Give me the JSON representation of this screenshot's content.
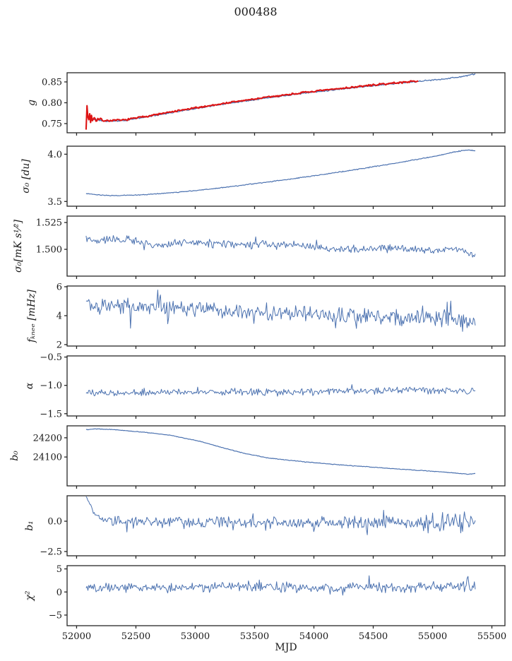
{
  "title": "000488",
  "xlabel": "MJD",
  "colors": {
    "background": "#ffffff",
    "spine": "#262626",
    "text": "#1a1a1a",
    "line_blue": "#4C72B0",
    "line_red": "#DE1414"
  },
  "chart_data": {
    "type": "line",
    "title": "000488",
    "xlabel": "MJD",
    "xlim": [
      51920,
      55610
    ],
    "xticks": [
      52000,
      52500,
      53000,
      53500,
      54000,
      54500,
      55000,
      55500
    ],
    "xticklabels": [
      "52000",
      "52500",
      "53000",
      "53500",
      "54000",
      "54500",
      "55000",
      "55500"
    ],
    "grid": false,
    "legend": "none",
    "subplots": [
      {
        "ylabel": "g",
        "ylim": [
          0.728,
          0.872
        ],
        "yticks": [
          0.85,
          0.8,
          0.75
        ],
        "yticklabels": [
          "0.85",
          "0.80",
          "0.75"
        ],
        "series": [
          {
            "name": "g-line",
            "color": "#4C72B0",
            "width": 1.3,
            "seed": 11,
            "n": 430,
            "x_start": 52080,
            "x_end": 55360,
            "trend": [
              [
                52080,
                0.769
              ],
              [
                52150,
                0.76
              ],
              [
                52250,
                0.7555
              ],
              [
                52400,
                0.757
              ],
              [
                52700,
                0.7715
              ],
              [
                53000,
                0.786
              ],
              [
                53300,
                0.7995
              ],
              [
                53600,
                0.8115
              ],
              [
                53900,
                0.8225
              ],
              [
                54200,
                0.832
              ],
              [
                54500,
                0.841
              ],
              [
                54800,
                0.849
              ],
              [
                55000,
                0.8545
              ],
              [
                55150,
                0.859
              ],
              [
                55250,
                0.863
              ],
              [
                55360,
                0.869
              ]
            ],
            "noise": [
              [
                52080,
                0.0013
              ],
              [
                55360,
                0.0013
              ]
            ]
          },
          {
            "name": "g-fit-line",
            "color": "#DE1414",
            "width": 2.1,
            "seed": 7,
            "n": 370,
            "x_start": 52080,
            "x_end": 54880,
            "trend": [
              [
                52080,
                0.7705
              ],
              [
                52150,
                0.7615
              ],
              [
                52250,
                0.757
              ],
              [
                52400,
                0.7585
              ],
              [
                52700,
                0.773
              ],
              [
                53000,
                0.7875
              ],
              [
                53300,
                0.801
              ],
              [
                53600,
                0.813
              ],
              [
                53900,
                0.824
              ],
              [
                54200,
                0.8335
              ],
              [
                54500,
                0.8425
              ],
              [
                54800,
                0.8505
              ],
              [
                54880,
                0.8525
              ]
            ],
            "noise": [
              [
                52080,
                0.027
              ],
              [
                52150,
                0.006
              ],
              [
                52260,
                0.0018
              ],
              [
                54880,
                0.0018
              ]
            ]
          }
        ]
      },
      {
        "ylabel": "σ₀ [du]",
        "ylim": [
          3.45,
          4.085
        ],
        "yticks": [
          4.0,
          3.5
        ],
        "yticklabels": [
          "4.0",
          "3.5"
        ],
        "series": [
          {
            "name": "sigma0-du-line",
            "color": "#4C72B0",
            "width": 1.2,
            "seed": 23,
            "n": 480,
            "x_start": 52080,
            "x_end": 55360,
            "trend": [
              [
                52080,
                3.585
              ],
              [
                52200,
                3.566
              ],
              [
                52350,
                3.562
              ],
              [
                52600,
                3.574
              ],
              [
                52900,
                3.603
              ],
              [
                53200,
                3.642
              ],
              [
                53500,
                3.688
              ],
              [
                53800,
                3.737
              ],
              [
                54100,
                3.79
              ],
              [
                54400,
                3.846
              ],
              [
                54700,
                3.908
              ],
              [
                54950,
                3.962
              ],
              [
                55100,
                4.0
              ],
              [
                55200,
                4.028
              ],
              [
                55290,
                4.045
              ],
              [
                55360,
                4.038
              ]
            ],
            "noise": [
              [
                52080,
                0.004
              ],
              [
                55360,
                0.004
              ]
            ]
          }
        ]
      },
      {
        "ylabel": "σ₀[mK s¹⁄²]",
        "ylim": [
          1.475,
          1.531
        ],
        "yticks": [
          1.525,
          1.5
        ],
        "yticklabels": [
          "1.525",
          "1.500"
        ],
        "series": [
          {
            "name": "sigma0-mks-line",
            "color": "#4C72B0",
            "width": 1.0,
            "seed": 37,
            "n": 430,
            "x_start": 52080,
            "x_end": 55360,
            "trend": [
              [
                52080,
                1.508
              ],
              [
                52400,
                1.51
              ],
              [
                52600,
                1.504
              ],
              [
                53000,
                1.506
              ],
              [
                53400,
                1.504
              ],
              [
                53800,
                1.505
              ],
              [
                54200,
                1.5
              ],
              [
                54600,
                1.501
              ],
              [
                55000,
                1.499
              ],
              [
                55200,
                1.5
              ],
              [
                55360,
                1.494
              ]
            ],
            "noise": [
              [
                52080,
                0.0032
              ],
              [
                55360,
                0.0032
              ]
            ],
            "spike_prob": 0.03,
            "spike_scale": 1.5
          }
        ]
      },
      {
        "ylabel": "fₖₙₑₑ [mHz]",
        "ylim": [
          1.9,
          6.05
        ],
        "yticks": [
          6,
          4,
          2
        ],
        "yticklabels": [
          "6",
          "4",
          "2"
        ],
        "series": [
          {
            "name": "fknee-line",
            "color": "#4C72B0",
            "width": 1.0,
            "seed": 41,
            "n": 430,
            "x_start": 52080,
            "x_end": 55360,
            "trend": [
              [
                52080,
                4.75
              ],
              [
                52400,
                4.62
              ],
              [
                52800,
                4.5
              ],
              [
                53200,
                4.38
              ],
              [
                53600,
                4.22
              ],
              [
                54000,
                4.05
              ],
              [
                54400,
                3.95
              ],
              [
                54800,
                3.87
              ],
              [
                55100,
                3.82
              ],
              [
                55360,
                3.78
              ]
            ],
            "noise": [
              [
                52080,
                0.5
              ],
              [
                55360,
                0.5
              ]
            ],
            "spike_prob": 0.04,
            "spike_scale": 2.2
          }
        ]
      },
      {
        "ylabel": "α",
        "ylim": [
          -1.54,
          -0.48
        ],
        "yticks": [
          -0.5,
          -1.0,
          -1.5
        ],
        "yticklabels": [
          "−0.5",
          "−1.0",
          "−1.5"
        ],
        "series": [
          {
            "name": "alpha-line",
            "color": "#4C72B0",
            "width": 1.0,
            "seed": 53,
            "n": 430,
            "x_start": 52080,
            "x_end": 55360,
            "trend": [
              [
                52080,
                -1.13
              ],
              [
                52600,
                -1.125
              ],
              [
                53200,
                -1.115
              ],
              [
                53800,
                -1.115
              ],
              [
                54400,
                -1.1
              ],
              [
                54800,
                -1.085
              ],
              [
                55100,
                -1.095
              ],
              [
                55360,
                -1.1
              ]
            ],
            "noise": [
              [
                52080,
                0.05
              ],
              [
                55360,
                0.05
              ]
            ],
            "spike_prob": 0.03,
            "spike_scale": 1.8
          }
        ]
      },
      {
        "ylabel": "b₀",
        "ylim": [
          23950,
          24262
        ],
        "yticks": [
          24200,
          24100
        ],
        "yticklabels": [
          "24200",
          "24100"
        ],
        "series": [
          {
            "name": "b0-line",
            "color": "#4C72B0",
            "width": 1.2,
            "seed": 61,
            "n": 430,
            "x_start": 52080,
            "x_end": 55360,
            "trend": [
              [
                52080,
                24242
              ],
              [
                52170,
                24246
              ],
              [
                52320,
                24242
              ],
              [
                52550,
                24230
              ],
              [
                52800,
                24212
              ],
              [
                53050,
                24180
              ],
              [
                53250,
                24145
              ],
              [
                53420,
                24118
              ],
              [
                53615,
                24095
              ],
              [
                53900,
                24076
              ],
              [
                54200,
                24060
              ],
              [
                54500,
                24047
              ],
              [
                54800,
                24034
              ],
              [
                55050,
                24024
              ],
              [
                55200,
                24016
              ],
              [
                55300,
                24010
              ],
              [
                55360,
                24015
              ]
            ],
            "noise": [
              [
                52080,
                1.4
              ],
              [
                55360,
                1.4
              ]
            ]
          }
        ]
      },
      {
        "ylabel": "b₁",
        "ylim": [
          -2.85,
          2.1
        ],
        "yticks": [
          0.0,
          -2.5
        ],
        "yticklabels": [
          "0.0",
          "−2.5"
        ],
        "series": [
          {
            "name": "b1-line",
            "color": "#4C72B0",
            "width": 1.0,
            "seed": 71,
            "n": 430,
            "x_start": 52080,
            "x_end": 55360,
            "trend": [
              [
                52080,
                2.05
              ],
              [
                52110,
                1.4
              ],
              [
                52150,
                0.75
              ],
              [
                52200,
                0.3
              ],
              [
                52280,
                0.02
              ],
              [
                52400,
                -0.08
              ],
              [
                53000,
                -0.1
              ],
              [
                54500,
                -0.08
              ],
              [
                55360,
                -0.05
              ]
            ],
            "noise": [
              [
                52080,
                0.12
              ],
              [
                52300,
                0.4
              ],
              [
                54700,
                0.42
              ],
              [
                55000,
                0.65
              ],
              [
                55360,
                0.7
              ]
            ],
            "spike_prob": 0.035,
            "spike_scale": 2.0
          }
        ]
      },
      {
        "ylabel": "χ²",
        "ylim": [
          -7.3,
          5.7
        ],
        "yticks": [
          5,
          0,
          -5
        ],
        "yticklabels": [
          "5",
          "0",
          "−5"
        ],
        "series": [
          {
            "name": "chi2-line",
            "color": "#4C72B0",
            "width": 1.0,
            "seed": 83,
            "n": 430,
            "x_start": 52080,
            "x_end": 55360,
            "trend": [
              [
                52080,
                0.9
              ],
              [
                53000,
                1.0
              ],
              [
                54000,
                1.05
              ],
              [
                55000,
                1.15
              ],
              [
                55360,
                1.2
              ]
            ],
            "noise": [
              [
                52080,
                0.9
              ],
              [
                54500,
                0.95
              ],
              [
                55360,
                1.1
              ]
            ],
            "spike_prob": 0.03,
            "spike_scale": 1.8
          }
        ]
      }
    ]
  }
}
